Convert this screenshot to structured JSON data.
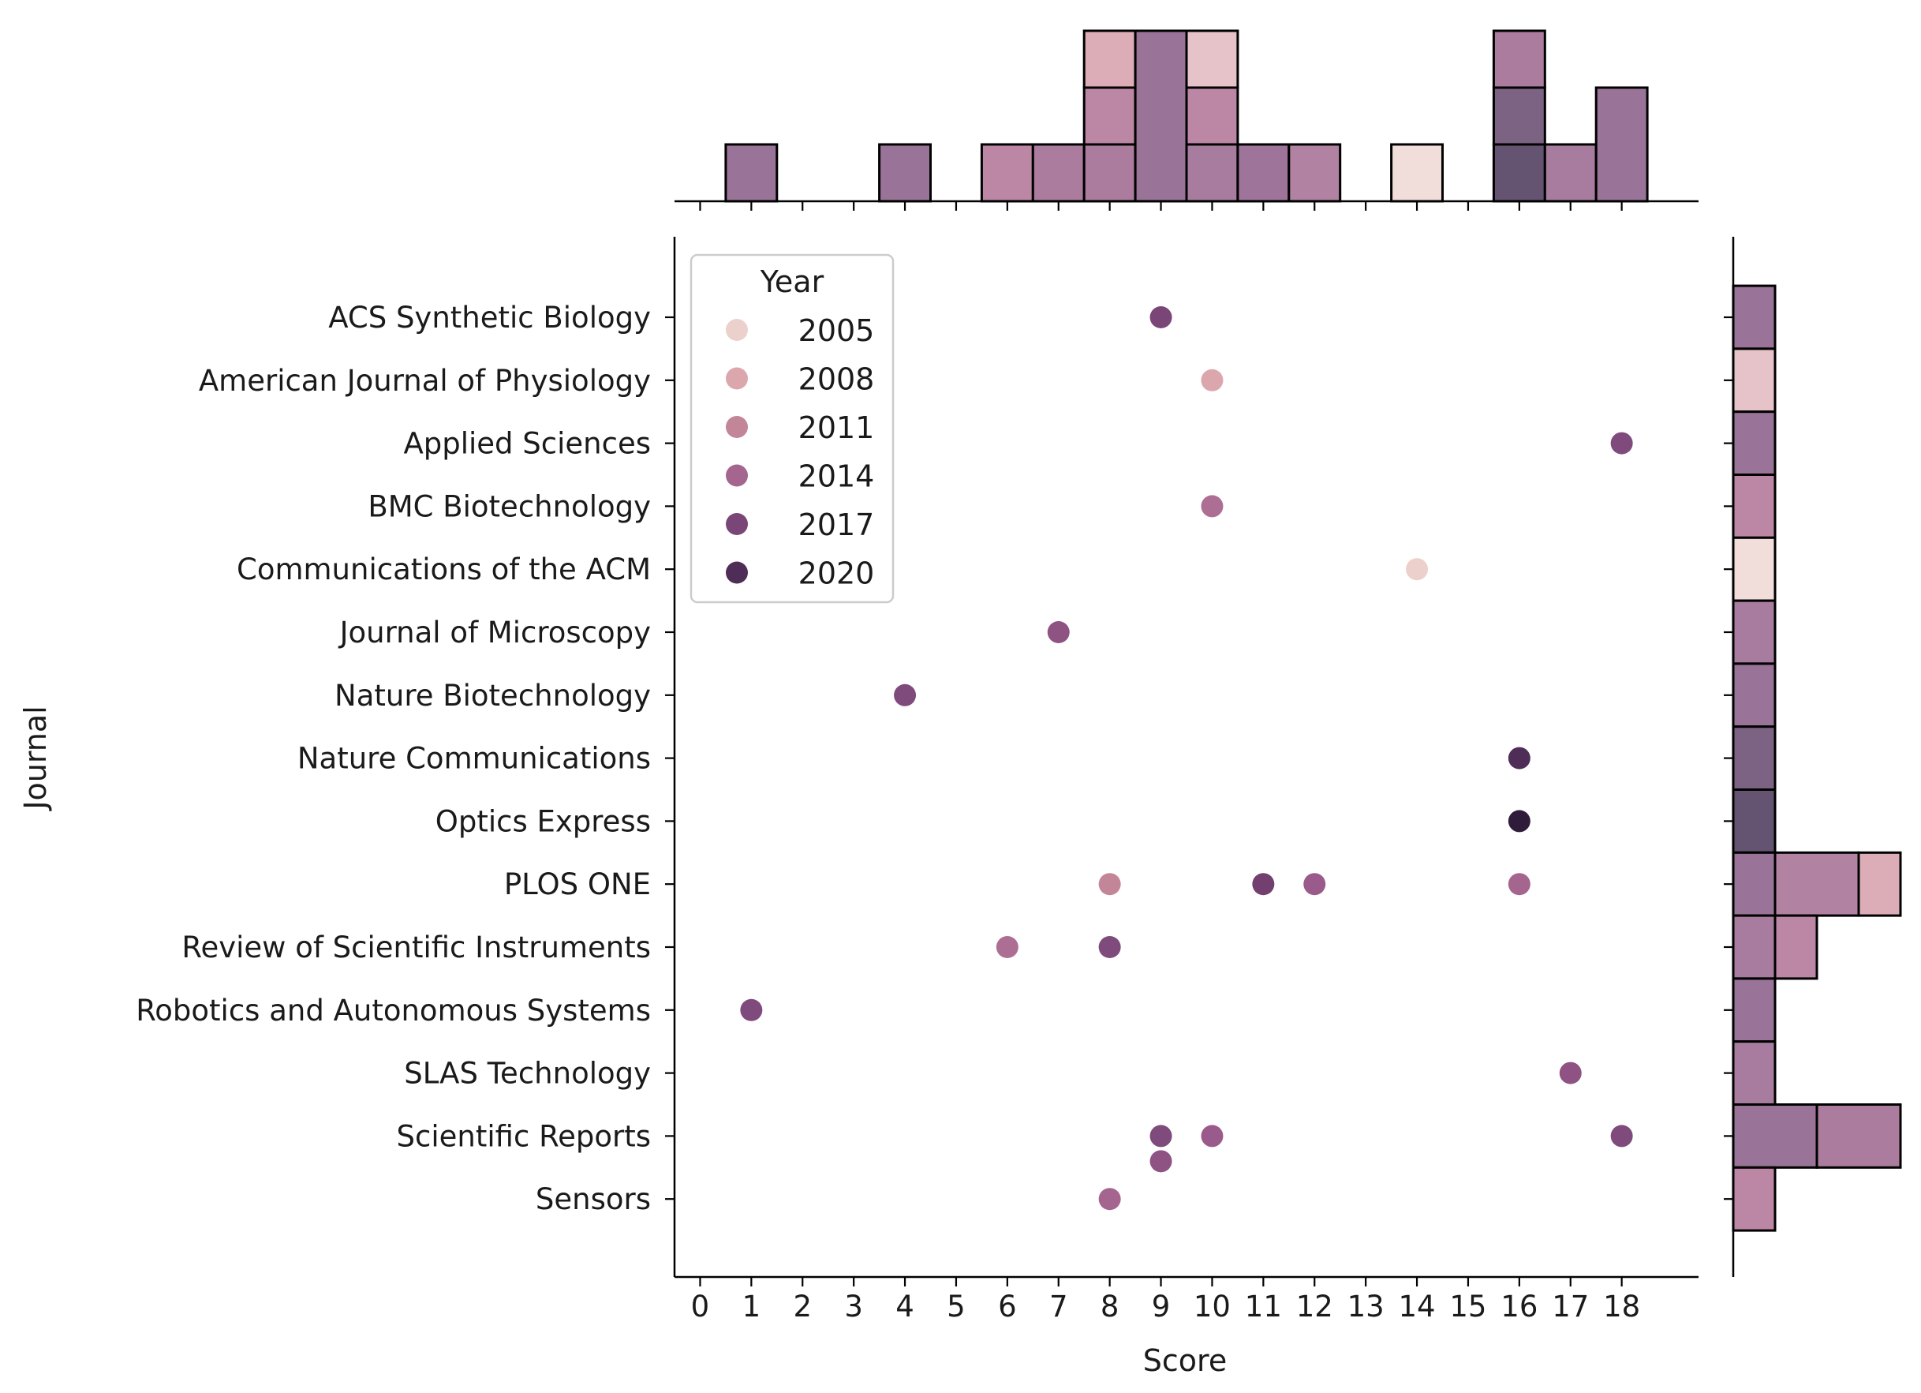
{
  "chart_data": {
    "type": "scatter",
    "xlabel": "Score",
    "ylabel": "Journal",
    "xlim": [
      -0.5,
      19.5
    ],
    "x_ticks": [
      0,
      1,
      2,
      3,
      4,
      5,
      6,
      7,
      8,
      9,
      10,
      11,
      12,
      13,
      14,
      15,
      16,
      17,
      18
    ],
    "categories": [
      "ACS Synthetic Biology",
      "American Journal of Physiology",
      "Applied Sciences",
      "BMC Biotechnology",
      "Communications of the ACM",
      "Journal of Microscopy",
      "Nature Biotechnology",
      "Nature Communications",
      "Optics Express",
      "PLOS ONE",
      "Review of Scientific Instruments",
      "Robotics and Autonomous Systems",
      "SLAS Technology",
      "Scientific Reports",
      "Sensors"
    ],
    "legend": {
      "title": "Year",
      "placement": "top-left",
      "entries": [
        {
          "label": "2005",
          "color": "#ecd0cc"
        },
        {
          "label": "2008",
          "color": "#dba7ac"
        },
        {
          "label": "2011",
          "color": "#c38598"
        },
        {
          "label": "2014",
          "color": "#a4658f"
        },
        {
          "label": "2017",
          "color": "#7a4678"
        },
        {
          "label": "2020",
          "color": "#4e2e56"
        }
      ]
    },
    "points": [
      {
        "journal": "ACS Synthetic Biology",
        "score": 9,
        "year": 2018,
        "color": "#7a4678"
      },
      {
        "journal": "American Journal of Physiology",
        "score": 10,
        "year": 2008,
        "color": "#dba7ac"
      },
      {
        "journal": "Applied Sciences",
        "score": 18,
        "year": 2017,
        "color": "#7f4a7c"
      },
      {
        "journal": "BMC Biotechnology",
        "score": 10,
        "year": 2013,
        "color": "#ad6e93"
      },
      {
        "journal": "Communications of the ACM",
        "score": 14,
        "year": 2005,
        "color": "#ecd0cc"
      },
      {
        "journal": "Journal of Microscopy",
        "score": 7,
        "year": 2016,
        "color": "#8e5283"
      },
      {
        "journal": "Nature Biotechnology",
        "score": 4,
        "year": 2017,
        "color": "#7f4a7c"
      },
      {
        "journal": "Nature Communications",
        "score": 16,
        "year": 2020,
        "color": "#4e2e56"
      },
      {
        "journal": "Optics Express",
        "score": 16,
        "year": 2022,
        "color": "#2f1c3a"
      },
      {
        "journal": "PLOS ONE",
        "score": 8,
        "year": 2011,
        "color": "#c38598"
      },
      {
        "journal": "PLOS ONE",
        "score": 11,
        "year": 2018,
        "color": "#733f6f"
      },
      {
        "journal": "PLOS ONE",
        "score": 12,
        "year": 2015,
        "color": "#9a5b8c"
      },
      {
        "journal": "PLOS ONE",
        "score": 16,
        "year": 2014,
        "color": "#a4658f"
      },
      {
        "journal": "Review of Scientific Instruments",
        "score": 6,
        "year": 2013,
        "color": "#ad6e93"
      },
      {
        "journal": "Review of Scientific Instruments",
        "score": 8,
        "year": 2017,
        "color": "#7f4a7c"
      },
      {
        "journal": "Robotics and Autonomous Systems",
        "score": 1,
        "year": 2017,
        "color": "#7f4a7c"
      },
      {
        "journal": "SLAS Technology",
        "score": 17,
        "year": 2016,
        "color": "#8e5283"
      },
      {
        "journal": "Scientific Reports",
        "score": 9,
        "year": 2017,
        "color": "#7f4a7c"
      },
      {
        "journal": "Scientific Reports",
        "score": 9,
        "year": 2016,
        "color": "#8e5283",
        "jitter": 0.4
      },
      {
        "journal": "Scientific Reports",
        "score": 10,
        "year": 2015,
        "color": "#9a5b8c"
      },
      {
        "journal": "Scientific Reports",
        "score": 18,
        "year": 2017,
        "color": "#7f4a7c"
      },
      {
        "journal": "Sensors",
        "score": 8,
        "year": 2014,
        "color": "#a4658f"
      }
    ],
    "top_histogram": {
      "bin_width": 1,
      "bins": [
        {
          "x": 1,
          "segments": [
            {
              "count": 1,
              "color": "#9a7398"
            }
          ]
        },
        {
          "x": 4,
          "segments": [
            {
              "count": 1,
              "color": "#9a7398"
            }
          ]
        },
        {
          "x": 6,
          "segments": [
            {
              "count": 1,
              "color": "#bc87a5"
            }
          ]
        },
        {
          "x": 7,
          "segments": [
            {
              "count": 1,
              "color": "#ab7c9e"
            }
          ]
        },
        {
          "x": 8,
          "segments": [
            {
              "count": 1,
              "color": "#ab7c9e"
            },
            {
              "count": 1,
              "color": "#bc87a5"
            },
            {
              "count": 1,
              "color": "#dcadb7"
            }
          ]
        },
        {
          "x": 9,
          "segments": [
            {
              "count": 3,
              "color": "#9a7398"
            }
          ]
        },
        {
          "x": 10,
          "segments": [
            {
              "count": 1,
              "color": "#a87c9e"
            },
            {
              "count": 1,
              "color": "#bc87a5"
            },
            {
              "count": 1,
              "color": "#e6c3c8"
            }
          ]
        },
        {
          "x": 11,
          "segments": [
            {
              "count": 1,
              "color": "#9e749b"
            }
          ]
        },
        {
          "x": 12,
          "segments": [
            {
              "count": 1,
              "color": "#b182a2"
            }
          ]
        },
        {
          "x": 14,
          "segments": [
            {
              "count": 1,
              "color": "#f1ddda"
            }
          ]
        },
        {
          "x": 16,
          "segments": [
            {
              "count": 1,
              "color": "#655471"
            },
            {
              "count": 1,
              "color": "#7c6383"
            },
            {
              "count": 1,
              "color": "#ab7c9e"
            }
          ]
        },
        {
          "x": 17,
          "segments": [
            {
              "count": 1,
              "color": "#a87c9e"
            }
          ]
        },
        {
          "x": 18,
          "segments": [
            {
              "count": 2,
              "color": "#9a7398"
            }
          ]
        }
      ]
    },
    "right_histogram": {
      "bars": [
        {
          "journal": "ACS Synthetic Biology",
          "segments": [
            {
              "count": 1,
              "color": "#9a7398"
            }
          ]
        },
        {
          "journal": "American Journal of Physiology",
          "segments": [
            {
              "count": 1,
              "color": "#e6c3c8"
            }
          ]
        },
        {
          "journal": "Applied Sciences",
          "segments": [
            {
              "count": 1,
              "color": "#9a7398"
            }
          ]
        },
        {
          "journal": "BMC Biotechnology",
          "segments": [
            {
              "count": 1,
              "color": "#bc87a5"
            }
          ]
        },
        {
          "journal": "Communications of the ACM",
          "segments": [
            {
              "count": 1,
              "color": "#f1ddda"
            }
          ]
        },
        {
          "journal": "Journal of Microscopy",
          "segments": [
            {
              "count": 1,
              "color": "#a87c9e"
            }
          ]
        },
        {
          "journal": "Nature Biotechnology",
          "segments": [
            {
              "count": 1,
              "color": "#9a7398"
            }
          ]
        },
        {
          "journal": "Nature Communications",
          "segments": [
            {
              "count": 1,
              "color": "#7c6383"
            }
          ]
        },
        {
          "journal": "Optics Express",
          "segments": [
            {
              "count": 1,
              "color": "#655471"
            }
          ]
        },
        {
          "journal": "PLOS ONE",
          "segments": [
            {
              "count": 1,
              "color": "#9a7398"
            },
            {
              "count": 2,
              "color": "#b182a2"
            },
            {
              "count": 1,
              "color": "#dcadb7"
            }
          ]
        },
        {
          "journal": "Review of Scientific Instruments",
          "segments": [
            {
              "count": 1,
              "color": "#a87c9e"
            },
            {
              "count": 1,
              "color": "#bc87a5"
            }
          ]
        },
        {
          "journal": "Robotics and Autonomous Systems",
          "segments": [
            {
              "count": 1,
              "color": "#9a7398"
            }
          ]
        },
        {
          "journal": "SLAS Technology",
          "segments": [
            {
              "count": 1,
              "color": "#a87c9e"
            }
          ]
        },
        {
          "journal": "Scientific Reports",
          "segments": [
            {
              "count": 2,
              "color": "#9a7398"
            },
            {
              "count": 2,
              "color": "#ab7c9e"
            }
          ]
        },
        {
          "journal": "Sensors",
          "segments": [
            {
              "count": 1,
              "color": "#bc87a5"
            }
          ]
        }
      ]
    }
  }
}
